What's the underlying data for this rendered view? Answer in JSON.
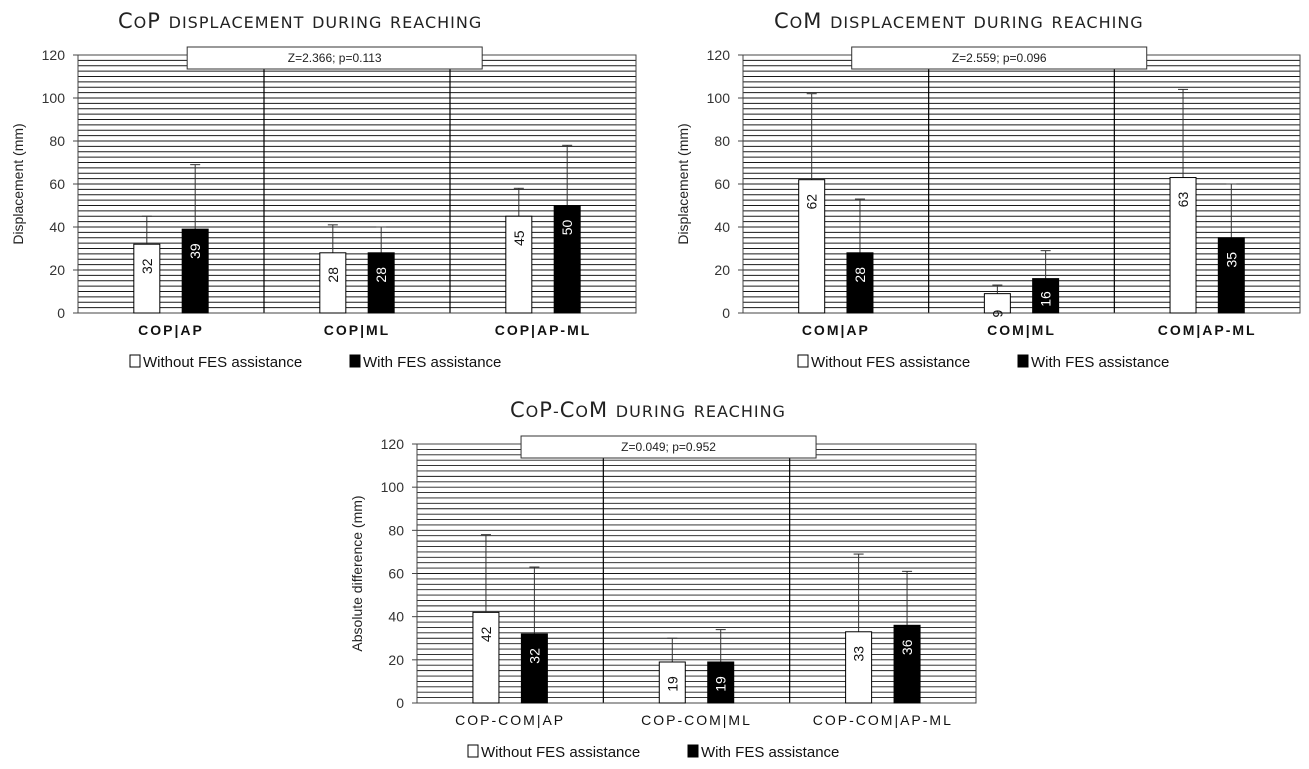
{
  "legend": {
    "without": "Without FES assistance",
    "with": "With FES assistance"
  },
  "colors": {
    "without": "#ffffff",
    "with": "#000000",
    "grid": "#1a1a1a",
    "axis": "#444444"
  },
  "chart_data": [
    {
      "type": "bar",
      "title": "CoP displacement during reaching",
      "annotation": "Z=2.366; p=0.113",
      "xlabel": "",
      "ylabel": "Displacement (mm)",
      "ylim": [
        0,
        120
      ],
      "yticks": [
        0,
        20,
        40,
        60,
        80,
        100,
        120
      ],
      "grid": true,
      "legend_position": "bottom",
      "categories": [
        "COP|AP",
        "COP|ML",
        "COP|AP-ML"
      ],
      "series": [
        {
          "name": "Without FES assistance",
          "values": [
            32,
            28,
            45
          ],
          "error": [
            45,
            41,
            58
          ]
        },
        {
          "name": "With FES assistance",
          "values": [
            39,
            28,
            50
          ],
          "error": [
            69,
            40,
            78
          ]
        }
      ]
    },
    {
      "type": "bar",
      "title": "CoM displacement during reaching",
      "annotation": "Z=2.559; p=0.096",
      "xlabel": "",
      "ylabel": "Displacement (mm)",
      "ylim": [
        0,
        120
      ],
      "yticks": [
        0,
        20,
        40,
        60,
        80,
        100,
        120
      ],
      "grid": true,
      "legend_position": "bottom",
      "categories": [
        "COM|AP",
        "COM|ML",
        "COM|AP-ML"
      ],
      "series": [
        {
          "name": "Without FES assistance",
          "values": [
            62,
            9,
            63
          ],
          "error": [
            102,
            13,
            104
          ]
        },
        {
          "name": "With FES assistance",
          "values": [
            28,
            16,
            35
          ],
          "error": [
            53,
            29,
            60
          ]
        }
      ]
    },
    {
      "type": "bar",
      "title": "CoP-CoM during reaching",
      "annotation": "Z=0.049; p=0.952",
      "xlabel": "",
      "ylabel": "Absolute difference (mm)",
      "ylim": [
        0,
        120
      ],
      "yticks": [
        0,
        20,
        40,
        60,
        80,
        100,
        120
      ],
      "grid": true,
      "legend_position": "bottom",
      "categories": [
        "COP-COM|AP",
        "COP-COM|ML",
        "COP-COM|AP-ML"
      ],
      "series": [
        {
          "name": "Without FES assistance",
          "values": [
            42,
            19,
            33
          ],
          "error": [
            78,
            30,
            69
          ]
        },
        {
          "name": "With FES assistance",
          "values": [
            32,
            19,
            36
          ],
          "error": [
            63,
            34,
            61
          ]
        }
      ]
    }
  ]
}
